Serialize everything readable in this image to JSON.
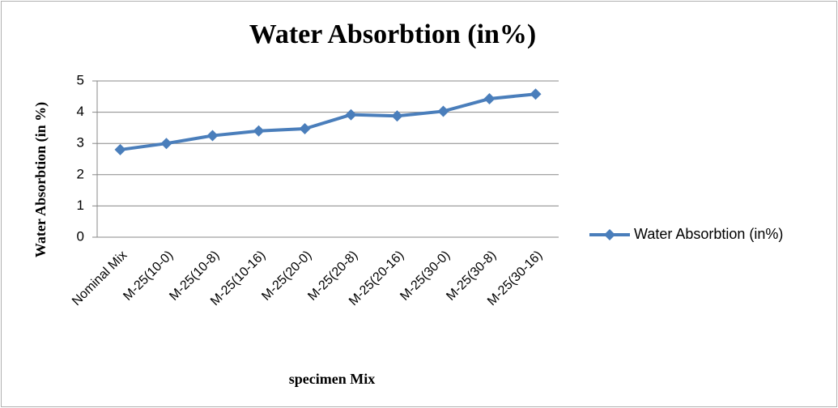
{
  "chart_data": {
    "type": "line",
    "title": "Water Absorbtion (in%)",
    "x_label": "specimen Mix",
    "y_label": "Water  Absorbtion (in %)",
    "categories": [
      "Nominal Mix",
      "M-25(10-0)",
      "M-25(10-8)",
      "M-25(10-16)",
      "M-25(20-0)",
      "M-25(20-8)",
      "M-25(20-16)",
      "M-25(30-0)",
      "M-25(30-8)",
      "M-25(30-16)"
    ],
    "series": [
      {
        "name": "Water Absorbtion (in%)",
        "color": "#4a7ebb",
        "values": [
          2.8,
          3.0,
          3.25,
          3.4,
          3.47,
          3.92,
          3.88,
          4.03,
          4.43,
          4.58
        ]
      }
    ],
    "ylim": [
      0,
      5
    ],
    "yticks": [
      0,
      1,
      2,
      3,
      4,
      5
    ],
    "grid": true,
    "legend": "right"
  }
}
